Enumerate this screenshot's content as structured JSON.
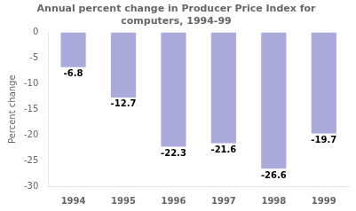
{
  "chart_data": {
    "type": "bar",
    "title": "Annual percent change in Producer Price Index for\ncomputers, 1994-99",
    "ylabel": "Percent change",
    "categories": [
      "1994",
      "1995",
      "1996",
      "1997",
      "1998",
      "1999"
    ],
    "values": [
      -6.8,
      -12.7,
      -22.3,
      -21.6,
      -26.6,
      -19.7
    ],
    "color": "#aaaadd",
    "ylim": [
      -30,
      0
    ],
    "yticks": [
      0,
      -5,
      -10,
      -15,
      -20,
      -25,
      -30
    ],
    "grid": false,
    "data_labels": true
  }
}
